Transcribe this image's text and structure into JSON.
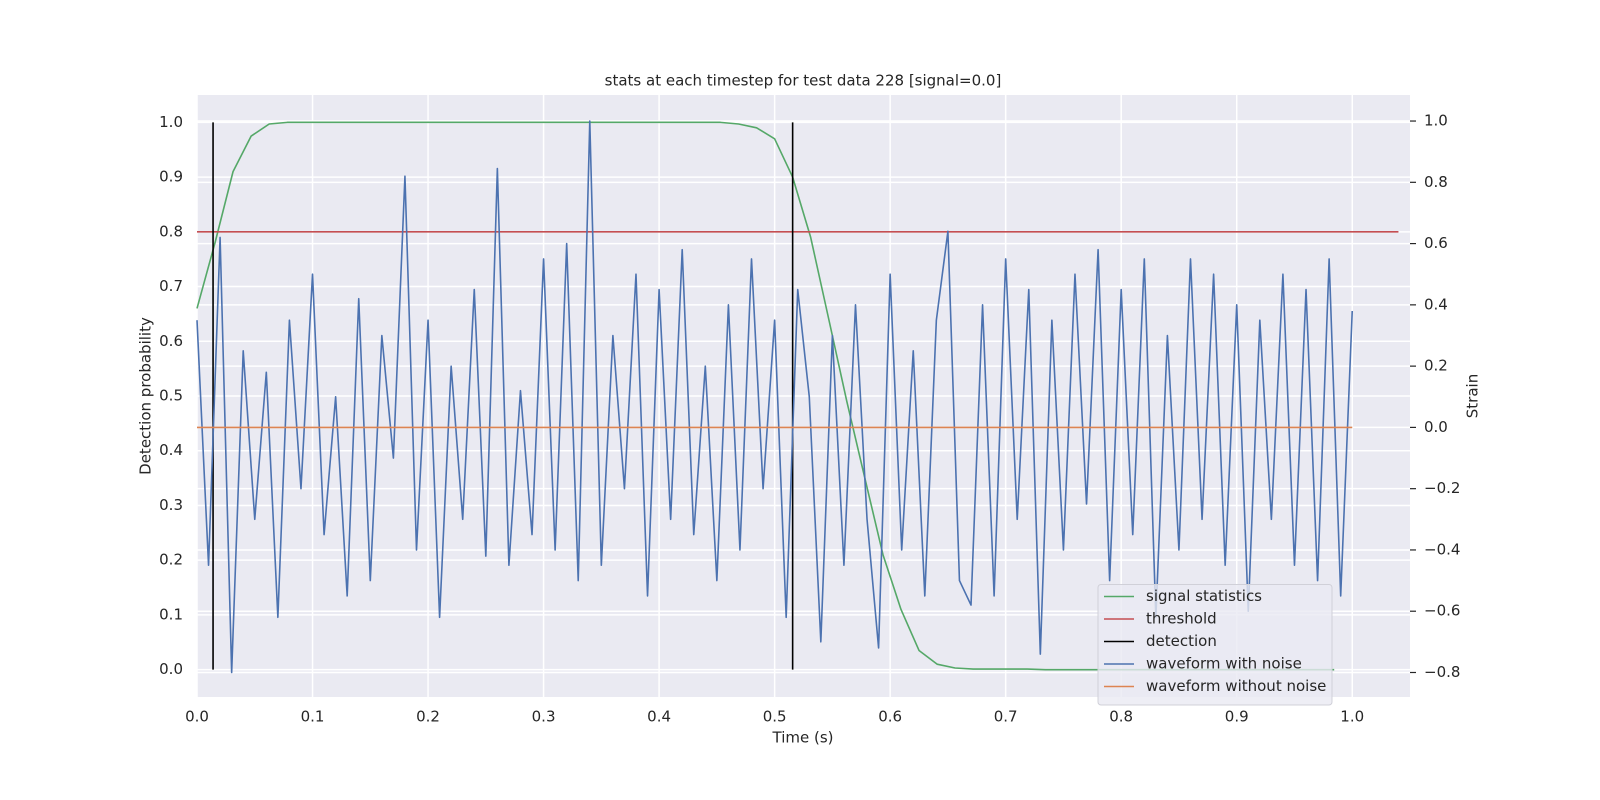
{
  "chart_data": {
    "type": "line",
    "title": "stats at each timestep for test data 228 [signal=0.0]",
    "xlabel": "Time (s)",
    "ylabel": "Detection probability",
    "y2label": "Strain",
    "xlim": [
      0,
      1.05
    ],
    "ylim": [
      -0.05,
      1.05
    ],
    "y2lim": [
      -0.88,
      1.085
    ],
    "xticks": [
      {
        "value": 0,
        "label": "0.0"
      },
      0.1,
      0.2,
      0.3,
      0.4,
      0.5,
      0.6,
      0.7,
      0.8,
      0.9,
      {
        "value": 1,
        "label": "1.0"
      }
    ],
    "yticks": [
      {
        "value": 0,
        "label": "0.0"
      },
      0.1,
      0.2,
      0.3,
      0.4,
      0.5,
      0.6,
      0.7,
      0.8,
      0.9,
      {
        "value": 1,
        "label": "1.0"
      }
    ],
    "y2ticks": [
      {
        "value": -0.8,
        "label": "−0.8"
      },
      {
        "value": -0.6,
        "label": "−0.6"
      },
      {
        "value": -0.4,
        "label": "−0.4"
      },
      {
        "value": -0.2,
        "label": "−0.2"
      },
      {
        "value": 0,
        "label": "0.0"
      },
      0.2,
      0.4,
      0.6,
      0.8,
      {
        "value": 1,
        "label": "1.0"
      }
    ],
    "grid": true,
    "legend": "lower right",
    "series": [
      {
        "name": "signal statistics",
        "color": "#55a868",
        "x": [
          0,
          0.0156,
          0.0312,
          0.0469,
          0.0625,
          0.0781,
          0.0938,
          0.1094,
          0.125,
          0.1406,
          0.1562,
          0.1719,
          0.1875,
          0.2031,
          0.2188,
          0.2344,
          0.25,
          0.2656,
          0.2812,
          0.2969,
          0.3125,
          0.3281,
          0.3438,
          0.3594,
          0.375,
          0.3906,
          0.4062,
          0.4219,
          0.4375,
          0.4531,
          0.4688,
          0.4844,
          0.5,
          0.5156,
          0.5312,
          0.5469,
          0.5625,
          0.5781,
          0.5938,
          0.6094,
          0.625,
          0.6406,
          0.6562,
          0.6719,
          0.6875,
          0.7031,
          0.7188,
          0.7344,
          0.75,
          0.7656,
          0.7812,
          0.7969,
          0.8125,
          0.8281,
          0.8438,
          0.8594,
          0.875,
          0.8906,
          0.9062,
          0.9219,
          0.9375,
          0.9531,
          0.9688,
          0.9844
        ],
        "values": [
          0.66,
          0.78,
          0.91,
          0.975,
          0.997,
          1,
          1,
          1,
          1,
          1,
          1,
          1,
          1,
          1,
          1,
          1,
          1,
          1,
          1,
          1,
          1,
          1,
          1,
          1,
          1,
          1,
          1,
          1,
          1,
          1,
          0.997,
          0.99,
          0.97,
          0.9,
          0.79,
          0.64,
          0.49,
          0.35,
          0.21,
          0.11,
          0.035,
          0.01,
          0.003,
          0.001,
          0.001,
          0.001,
          0.001,
          0,
          0,
          0,
          0,
          0,
          0,
          0,
          0,
          0,
          0,
          0,
          0,
          0,
          0,
          0,
          0,
          0
        ]
      },
      {
        "name": "threshold",
        "color": "#c44e52",
        "x": [
          0,
          1.04
        ],
        "values": [
          0.8,
          0.8
        ]
      },
      {
        "name": "detection",
        "color": "#000000",
        "x": [
          0.0139,
          0.0139,
          null,
          0.5156,
          0.5156
        ],
        "values": [
          0,
          1,
          null,
          0,
          1
        ]
      },
      {
        "name": "waveform with noise",
        "color": "#4c72b0",
        "axis": "y2",
        "x": [
          0,
          0.01,
          0.02,
          0.03,
          0.04,
          0.05,
          0.06,
          0.07,
          0.08,
          0.09,
          0.1,
          0.11,
          0.12,
          0.13,
          0.14,
          0.15,
          0.16,
          0.17,
          0.18,
          0.19,
          0.2,
          0.21,
          0.22,
          0.23,
          0.24,
          0.25,
          0.26,
          0.27,
          0.28,
          0.29,
          0.3,
          0.31,
          0.32,
          0.33,
          0.34,
          0.35,
          0.36,
          0.37,
          0.38,
          0.39,
          0.4,
          0.41,
          0.42,
          0.43,
          0.44,
          0.45,
          0.46,
          0.47,
          0.48,
          0.49,
          0.5,
          0.51,
          0.52,
          0.53,
          0.54,
          0.55,
          0.56,
          0.57,
          0.58,
          0.59,
          0.6,
          0.61,
          0.62,
          0.63,
          0.64,
          0.65,
          0.66,
          0.67,
          0.68,
          0.69,
          0.7,
          0.71,
          0.72,
          0.73,
          0.74,
          0.75,
          0.76,
          0.77,
          0.78,
          0.79,
          0.8,
          0.81,
          0.82,
          0.83,
          0.84,
          0.85,
          0.86,
          0.87,
          0.88,
          0.89,
          0.9,
          0.91,
          0.92,
          0.93,
          0.94,
          0.95,
          0.96,
          0.97,
          0.98,
          0.99,
          1
        ],
        "values": [
          0.35,
          -0.45,
          0.62,
          -0.8,
          0.25,
          -0.3,
          0.18,
          -0.62,
          0.35,
          -0.2,
          0.5,
          -0.35,
          0.1,
          -0.55,
          0.42,
          -0.5,
          0.3,
          -0.1,
          0.82,
          -0.4,
          0.35,
          -0.62,
          0.2,
          -0.3,
          0.45,
          -0.42,
          0.845,
          -0.45,
          0.12,
          -0.35,
          0.55,
          -0.4,
          0.6,
          -0.5,
          1.0,
          -0.45,
          0.3,
          -0.2,
          0.5,
          -0.55,
          0.45,
          -0.3,
          0.58,
          -0.35,
          0.2,
          -0.5,
          0.4,
          -0.4,
          0.55,
          -0.2,
          0.35,
          -0.62,
          0.45,
          0.1,
          -0.7,
          0.3,
          -0.45,
          0.4,
          -0.3,
          -0.72,
          0.5,
          -0.4,
          0.25,
          -0.55,
          0.35,
          0.64,
          -0.5,
          -0.58,
          0.4,
          -0.55,
          0.55,
          -0.3,
          0.45,
          -0.74,
          0.35,
          -0.4,
          0.5,
          -0.25,
          0.58,
          -0.5,
          0.45,
          -0.35,
          0.55,
          -0.62,
          0.3,
          -0.4,
          0.55,
          -0.3,
          0.5,
          -0.45,
          0.4,
          -0.6,
          0.35,
          -0.3,
          0.5,
          -0.45,
          0.45,
          -0.5,
          0.55,
          -0.55,
          0.38
        ]
      },
      {
        "name": "waveform without noise",
        "color": "#dd8452",
        "axis": "y2",
        "x": [
          0,
          1
        ],
        "values": [
          0,
          0
        ]
      }
    ]
  }
}
